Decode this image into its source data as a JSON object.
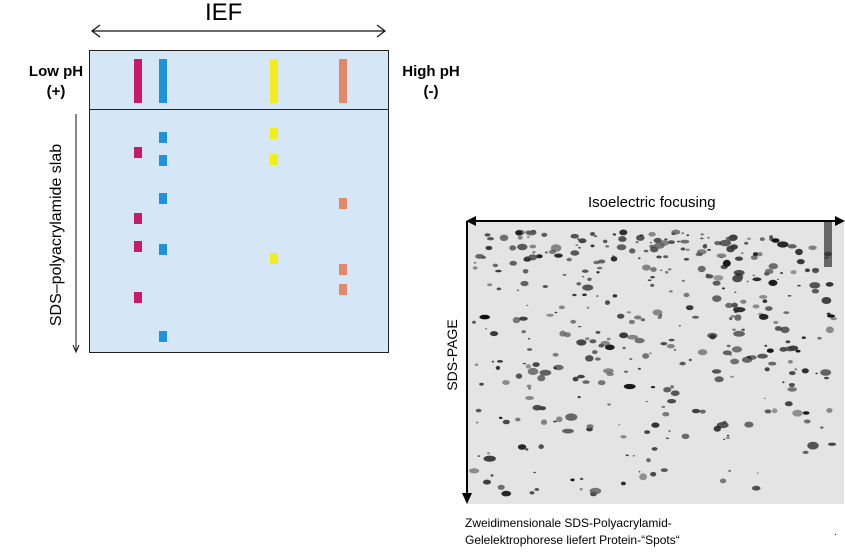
{
  "left_diagram": {
    "title": "IEF",
    "low_ph": {
      "label": "Low pH",
      "charge": "(+)"
    },
    "high_ph": {
      "label": "High pH",
      "charge": "(-)"
    },
    "slab_label": "SDS–polyacrylamide slab",
    "colors": {
      "panel": "#d5e6f6",
      "magenta": "#c8196b",
      "blue": "#1c94dc",
      "yellow": "#f2ee1a",
      "salmon": "#e4886a"
    },
    "bands": [
      {
        "color": "magenta"
      },
      {
        "color": "blue"
      },
      {
        "color": "yellow"
      },
      {
        "color": "salmon"
      }
    ],
    "spots": [
      {
        "color": "magenta"
      },
      {
        "color": "magenta"
      },
      {
        "color": "magenta"
      },
      {
        "color": "magenta"
      },
      {
        "color": "blue"
      },
      {
        "color": "blue"
      },
      {
        "color": "blue"
      },
      {
        "color": "blue"
      },
      {
        "color": "blue"
      },
      {
        "color": "yellow"
      },
      {
        "color": "yellow"
      },
      {
        "color": "yellow"
      },
      {
        "color": "salmon"
      },
      {
        "color": "salmon"
      },
      {
        "color": "salmon"
      }
    ]
  },
  "right_gel": {
    "top_label": "Isoelectric focusing",
    "side_label": "SDS-PAGE",
    "caption_line1": "Zweidimensionale SDS-Polyacrylamid-",
    "caption_line2": "Gelelektrophorese  liefert Protein-“Spots“",
    "corner_mark": "."
  }
}
